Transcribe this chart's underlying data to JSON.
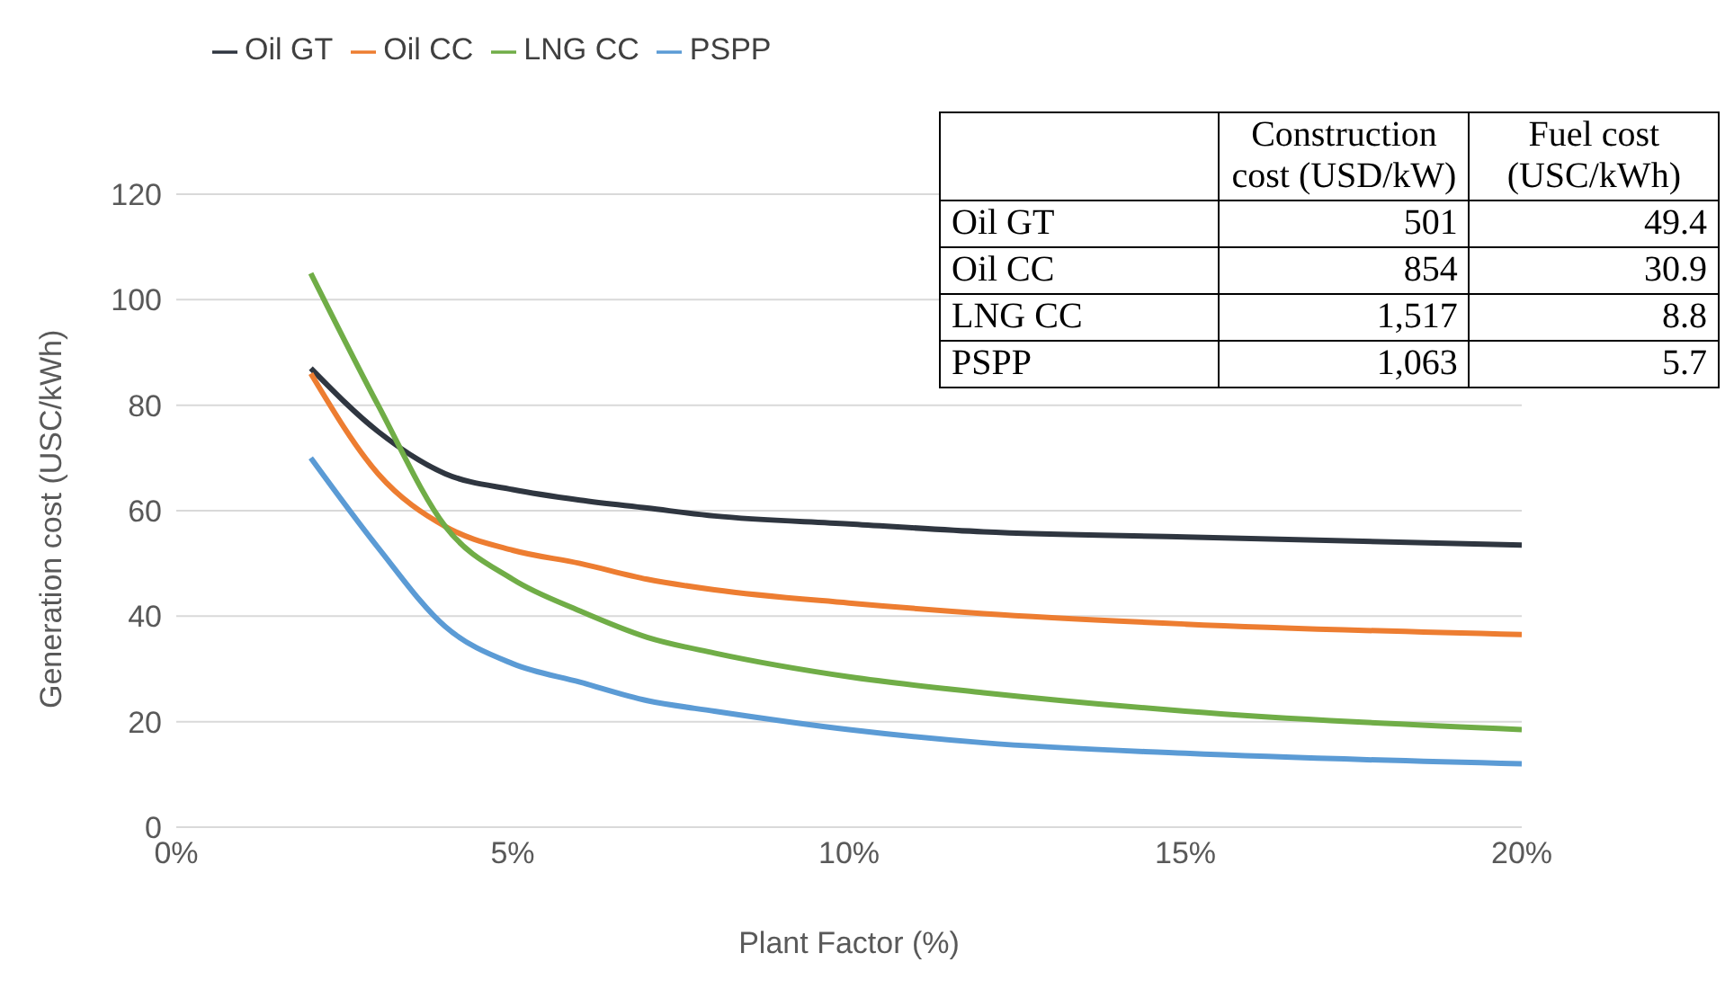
{
  "chart_data": [
    {
      "type": "line",
      "xlabel": "Plant Factor (%)",
      "ylabel": "Generation cost (USC/kWh)",
      "x": [
        2,
        3,
        4,
        5,
        6,
        7,
        8,
        10,
        12,
        15,
        20
      ],
      "series": [
        {
          "name": "Oil GT",
          "color": "#2f3640",
          "values": [
            87,
            75,
            67,
            64,
            62,
            60.5,
            59,
            57.5,
            56,
            55,
            53.5
          ]
        },
        {
          "name": "Oil CC",
          "color": "#ed7d31",
          "values": [
            86,
            67,
            57,
            52.5,
            50,
            47,
            45,
            42.5,
            40.5,
            38.5,
            36.5
          ]
        },
        {
          "name": "LNG CC",
          "color": "#70ad47",
          "values": [
            105,
            80,
            57,
            47,
            41,
            36,
            33,
            28.5,
            25.5,
            22,
            18.5
          ]
        },
        {
          "name": "PSPP",
          "color": "#5b9bd5",
          "values": [
            70,
            53,
            38,
            31,
            27.5,
            24,
            22,
            18.5,
            16,
            14,
            12
          ]
        }
      ],
      "xlim": [
        0,
        20
      ],
      "xticks": [
        {
          "value": 0,
          "label": "0%"
        },
        {
          "value": 5,
          "label": "5%"
        },
        {
          "value": 10,
          "label": "10%"
        },
        {
          "value": 15,
          "label": "15%"
        },
        {
          "value": 20,
          "label": "20%"
        }
      ],
      "ylim": [
        0,
        120
      ],
      "yticks": [
        0,
        20,
        40,
        60,
        80,
        100,
        120
      ],
      "grid": "y",
      "legend": "top left",
      "marker": "none",
      "line_style": "solid"
    },
    {
      "type": "other",
      "categories": [
        "Construction cost (USD/kW)",
        "Fuel cost (USC/kWh)"
      ],
      "y_categories": [
        "Oil GT",
        "Oil CC",
        "LNG CC",
        "PSPP"
      ],
      "cell_labels": [
        [
          "501",
          "49.4"
        ],
        [
          "854",
          "30.9"
        ],
        [
          "1,517",
          "8.8"
        ],
        [
          "1,063",
          "5.7"
        ]
      ]
    }
  ]
}
